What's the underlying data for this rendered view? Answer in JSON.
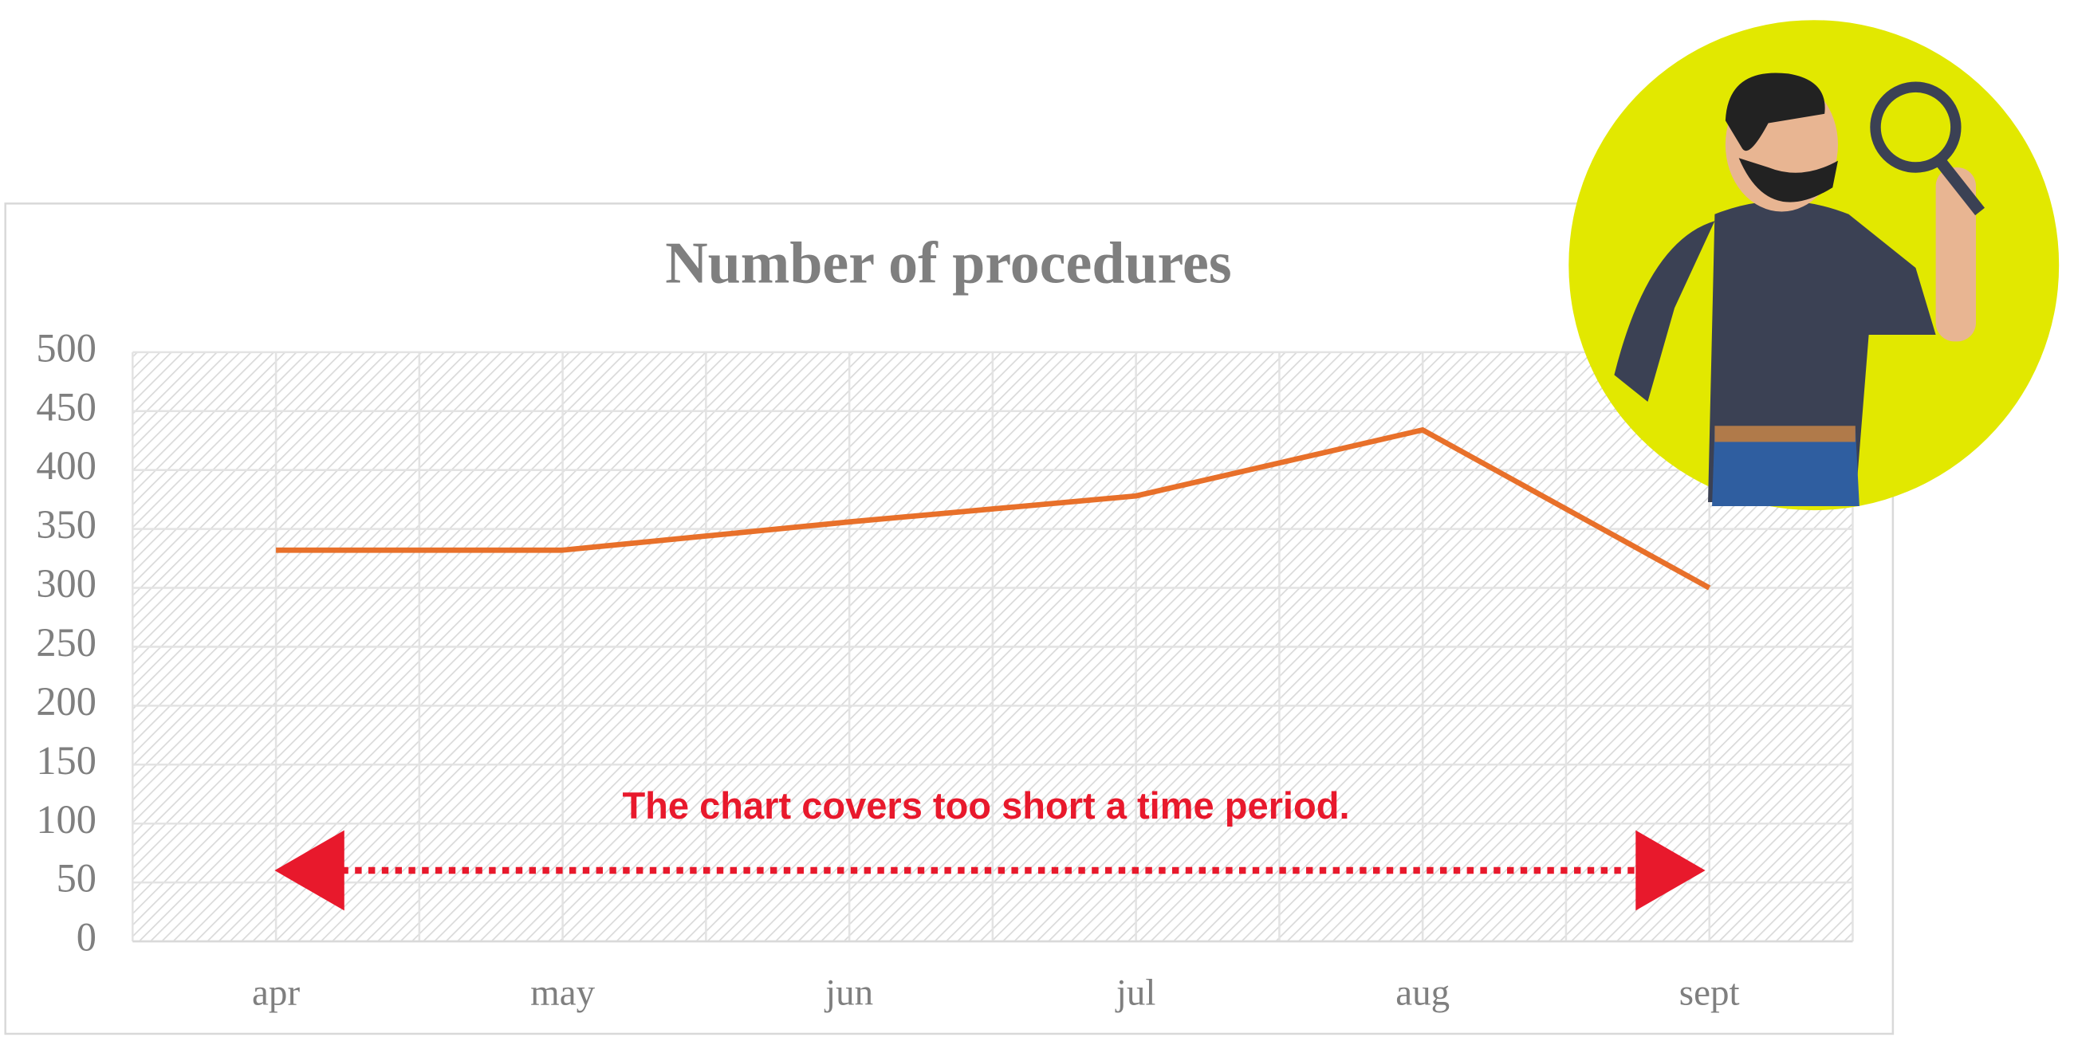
{
  "chart_data": {
    "type": "line",
    "title": "Number of procedures",
    "categories": [
      "apr",
      "may",
      "jun",
      "jul",
      "aug",
      "sept"
    ],
    "series": [
      {
        "name": "Number of procedures",
        "color": "#e8702a",
        "values": [
          332,
          332,
          356,
          378,
          434,
          300
        ]
      }
    ],
    "ylim": [
      0,
      500
    ],
    "yticks": [
      0,
      50,
      100,
      150,
      200,
      250,
      300,
      350,
      400,
      450,
      500
    ],
    "grid": true,
    "annotation": "The chart covers too short a time period."
  }
}
